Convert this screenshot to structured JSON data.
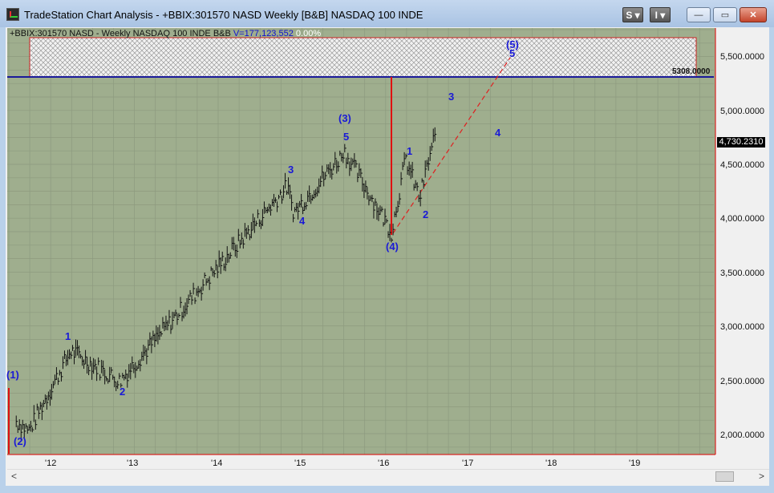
{
  "window": {
    "title": "TradeStation Chart Analysis - +BBIX:301570 NASD Weekly [B&B] NASDAQ 100 INDE",
    "btn_s": "S ▾",
    "btn_i": "I ▾",
    "minimize": "—",
    "maximize": "▭",
    "close": "✕"
  },
  "chart_header": {
    "symbol": "+BBIX:301570 NASD - Weekly  NASDAQ 100 INDE  B&B",
    "volume": "V=177,123,552",
    "change": "0.00%"
  },
  "price_tag": "4,730.2310",
  "level_label": "5308.0000",
  "y_ticks": [
    "5,500.0000",
    "5,000.0000",
    "4,500.0000",
    "4,000.0000",
    "3,500.0000",
    "3,000.0000",
    "2,500.0000",
    "2,000.0000"
  ],
  "x_ticks": [
    "'12",
    "'13",
    "'14",
    "'15",
    "'16",
    "'17",
    "'18",
    "'19"
  ],
  "waves": [
    "(1)",
    "(2)",
    "1",
    "2",
    "3",
    "4",
    "5",
    "(3)",
    "(4)",
    "1",
    "2",
    "3",
    "4",
    "(5)",
    "5"
  ],
  "scroll": {
    "left": "<",
    "right": ">"
  },
  "chart_data": {
    "type": "bar",
    "ylim": [
      1850,
      5800
    ],
    "x_range": [
      "2011-07",
      "2019-12"
    ],
    "resistance_level": 5308,
    "last_price": 4730.231,
    "key_points": [
      {
        "x": "2011-08",
        "y": 2140,
        "label": "(1)"
      },
      {
        "x": "2011-10",
        "y": 2040,
        "label": "(2)"
      },
      {
        "x": "2012-04",
        "y": 2780,
        "label": "1"
      },
      {
        "x": "2012-11",
        "y": 2500,
        "label": "2"
      },
      {
        "x": "2014-11",
        "y": 4300,
        "label": "3"
      },
      {
        "x": "2014-12",
        "y": 4060,
        "label": "4"
      },
      {
        "x": "2015-07",
        "y": 4600,
        "label": "5"
      },
      {
        "x": "2015-07",
        "y": 4650,
        "label": "(3)"
      },
      {
        "x": "2016-02",
        "y": 3880,
        "label": "(4)"
      },
      {
        "x": "2016-04",
        "y": 4560,
        "label": "1"
      },
      {
        "x": "2016-06",
        "y": 4190,
        "label": "2"
      },
      {
        "x": "2016-08",
        "y": 4730,
        "label": "3"
      },
      {
        "x": "2017-06",
        "y": 5620,
        "label": "(5)"
      }
    ]
  }
}
